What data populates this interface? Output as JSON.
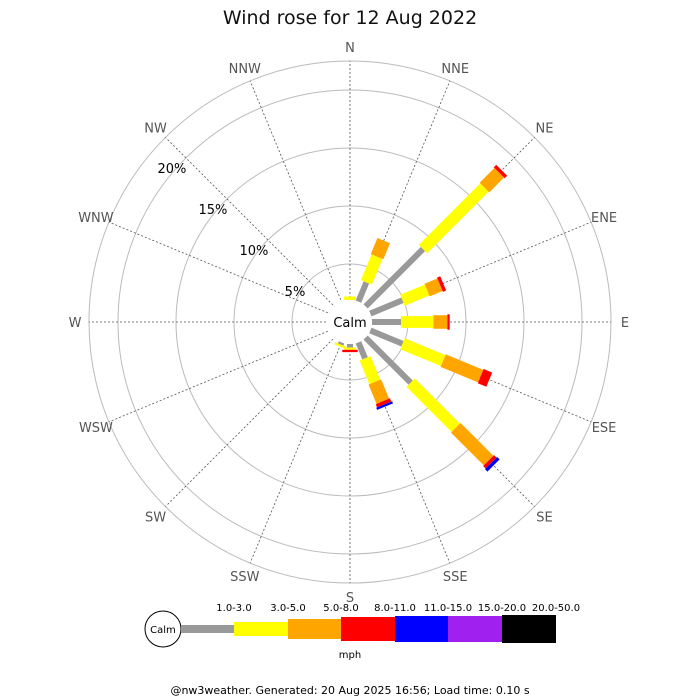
{
  "title": "Wind rose for 12 Aug 2022",
  "footer": "@nw3weather. Generated: 20 Aug 2025 16:56; Load time: 0.10 s",
  "calm_label": "Calm",
  "chart_data": {
    "type": "wind-rose",
    "directions": [
      "N",
      "NNE",
      "NE",
      "ENE",
      "E",
      "ESE",
      "SE",
      "SSE",
      "S",
      "SSW",
      "SW",
      "WSW",
      "W",
      "WNW",
      "NW",
      "NNW"
    ],
    "ring_percents": [
      5,
      10,
      15,
      20
    ],
    "ring_labels": [
      "5%",
      "10%",
      "15%",
      "20%"
    ],
    "r_max_percent": 22.5,
    "speed_bins": [
      {
        "label": "1.0-3.0",
        "color": "#999999"
      },
      {
        "label": "3.0-5.0",
        "color": "#ffff00"
      },
      {
        "label": "5.0-8.0",
        "color": "#ffa500"
      },
      {
        "label": "8.0-11.0",
        "color": "#ff0000"
      },
      {
        "label": "11.0-15.0",
        "color": "#0000ff"
      },
      {
        "label": "15.0-20.0",
        "color": "#a020f0"
      },
      {
        "label": "20.0-50.0",
        "color": "#000000"
      }
    ],
    "unit": "mph",
    "frequencies_percent": {
      "N": [
        0.0,
        0.3,
        0.0,
        0.0,
        0.0,
        0.0,
        0.0
      ],
      "NNE": [
        1.8,
        2.4,
        1.5,
        0.0,
        0.0,
        0.0,
        0.0
      ],
      "NE": [
        7.0,
        7.5,
        1.8,
        0.3,
        0.0,
        0.0,
        0.0
      ],
      "ENE": [
        3.0,
        2.3,
        1.2,
        0.3,
        0.0,
        0.0,
        0.0
      ],
      "E": [
        2.5,
        2.8,
        1.2,
        0.2,
        0.0,
        0.0,
        0.0
      ],
      "ESE": [
        3.0,
        3.8,
        3.5,
        0.8,
        0.0,
        0.0,
        0.0
      ],
      "SE": [
        5.5,
        5.5,
        4.0,
        0.3,
        0.3,
        0.0,
        0.0
      ],
      "SSE": [
        1.5,
        2.2,
        1.8,
        0.3,
        0.2,
        0.0,
        0.0
      ],
      "S": [
        0.3,
        0.2,
        0.0,
        0.2,
        0.0,
        0.0,
        0.0
      ],
      "SSW": [
        0.2,
        0.2,
        0.0,
        0.0,
        0.0,
        0.0,
        0.0
      ],
      "SW": [
        0.0,
        0.0,
        0.0,
        0.0,
        0.0,
        0.0,
        0.0
      ],
      "WSW": [
        0.0,
        0.0,
        0.0,
        0.0,
        0.0,
        0.0,
        0.0
      ],
      "W": [
        0.0,
        0.0,
        0.0,
        0.0,
        0.0,
        0.0,
        0.0
      ],
      "WNW": [
        0.0,
        0.0,
        0.0,
        0.0,
        0.0,
        0.0,
        0.0
      ],
      "NW": [
        0.0,
        0.0,
        0.0,
        0.0,
        0.0,
        0.0,
        0.0
      ],
      "NNW": [
        0.0,
        0.0,
        0.0,
        0.0,
        0.0,
        0.0,
        0.0
      ]
    }
  }
}
